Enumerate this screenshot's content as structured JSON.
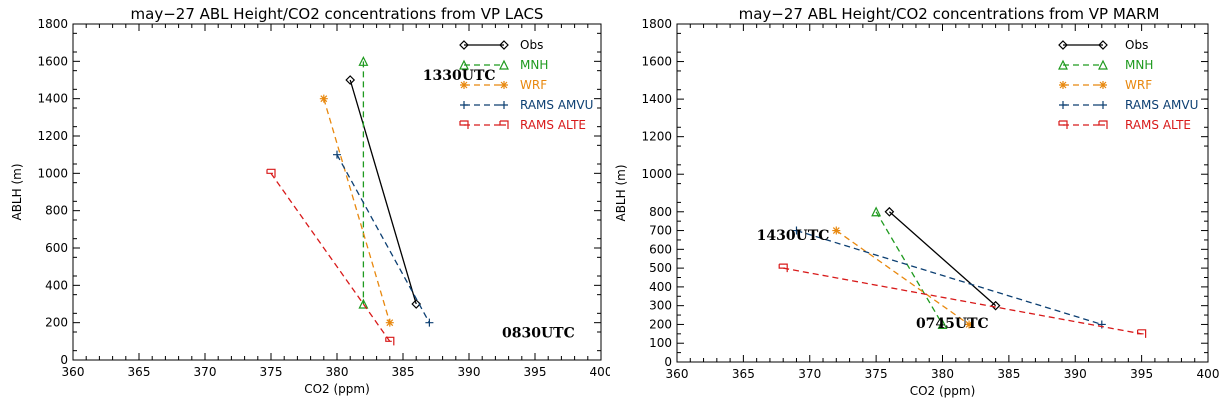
{
  "chart_data": [
    {
      "type": "line",
      "title": "may−27 ABL Height/CO2 concentrations from VP LACS",
      "xlabel": "CO2 (ppm)",
      "ylabel": "ABLH (m)",
      "xlim": [
        360,
        400
      ],
      "ylim": [
        0,
        1800
      ],
      "x_ticks": [
        360,
        365,
        370,
        375,
        380,
        385,
        390,
        395,
        400
      ],
      "y_ticks": [
        0,
        200,
        400,
        600,
        800,
        1000,
        1200,
        1400,
        1600,
        1800
      ],
      "grid": false,
      "legend_position": "top-right",
      "series": [
        {
          "name": "Obs",
          "color": "#000000",
          "dash": "solid",
          "marker": "diamond",
          "points": [
            [
              381,
              1500
            ],
            [
              386,
              300
            ]
          ]
        },
        {
          "name": "MNH",
          "color": "#1f9a1f",
          "dash": "dashed",
          "marker": "triangle",
          "points": [
            [
              382,
              1600
            ],
            [
              382,
              300
            ]
          ]
        },
        {
          "name": "WRF",
          "color": "#e8880e",
          "dash": "dashed",
          "marker": "asterisk",
          "points": [
            [
              379,
              1400
            ],
            [
              384,
              200
            ]
          ]
        },
        {
          "name": "RAMS AMVU",
          "color": "#0c3f72",
          "dash": "dashed",
          "marker": "plus",
          "points": [
            [
              380,
              1100
            ],
            [
              387,
              200
            ]
          ]
        },
        {
          "name": "RAMS ALTE",
          "color": "#d81a1a",
          "dash": "dashed",
          "marker": "square-bracket",
          "points": [
            [
              375,
              1000
            ],
            [
              384,
              100
            ]
          ]
        }
      ],
      "annotations": [
        {
          "text": "1330UTC",
          "x": 386.5,
          "y": 1500
        },
        {
          "text": "0830UTC",
          "x": 392.5,
          "y": 120
        }
      ]
    },
    {
      "type": "line",
      "title": "may−27 ABL Height/CO2 concentrations from VP MARM",
      "xlabel": "CO2 (ppm)",
      "ylabel": "ABLH (m)",
      "xlim": [
        360,
        400
      ],
      "ylim": [
        0,
        1800
      ],
      "x_ticks": [
        360,
        365,
        370,
        375,
        380,
        385,
        390,
        395,
        400
      ],
      "y_ticks": [
        0,
        100,
        200,
        300,
        400,
        500,
        600,
        700,
        800,
        1000,
        1200,
        1400,
        1600,
        1800
      ],
      "grid": false,
      "legend_position": "top-right",
      "series": [
        {
          "name": "Obs",
          "color": "#000000",
          "dash": "solid",
          "marker": "diamond",
          "points": [
            [
              376,
              800
            ],
            [
              384,
              300
            ]
          ]
        },
        {
          "name": "MNH",
          "color": "#1f9a1f",
          "dash": "dashed",
          "marker": "triangle",
          "points": [
            [
              375,
              800
            ],
            [
              380,
              200
            ]
          ]
        },
        {
          "name": "WRF",
          "color": "#e8880e",
          "dash": "dashed",
          "marker": "asterisk",
          "points": [
            [
              372,
              700
            ],
            [
              382,
              200
            ]
          ]
        },
        {
          "name": "RAMS AMVU",
          "color": "#0c3f72",
          "dash": "dashed",
          "marker": "plus",
          "points": [
            [
              369,
              700
            ],
            [
              392,
              200
            ]
          ]
        },
        {
          "name": "RAMS ALTE",
          "color": "#d81a1a",
          "dash": "dashed",
          "marker": "square-bracket",
          "points": [
            [
              368,
              500
            ],
            [
              395,
              150
            ]
          ]
        }
      ],
      "annotations": [
        {
          "text": "1430UTC",
          "x": 366,
          "y": 650
        },
        {
          "text": "0745UTC",
          "x": 378,
          "y": 180
        }
      ]
    }
  ]
}
